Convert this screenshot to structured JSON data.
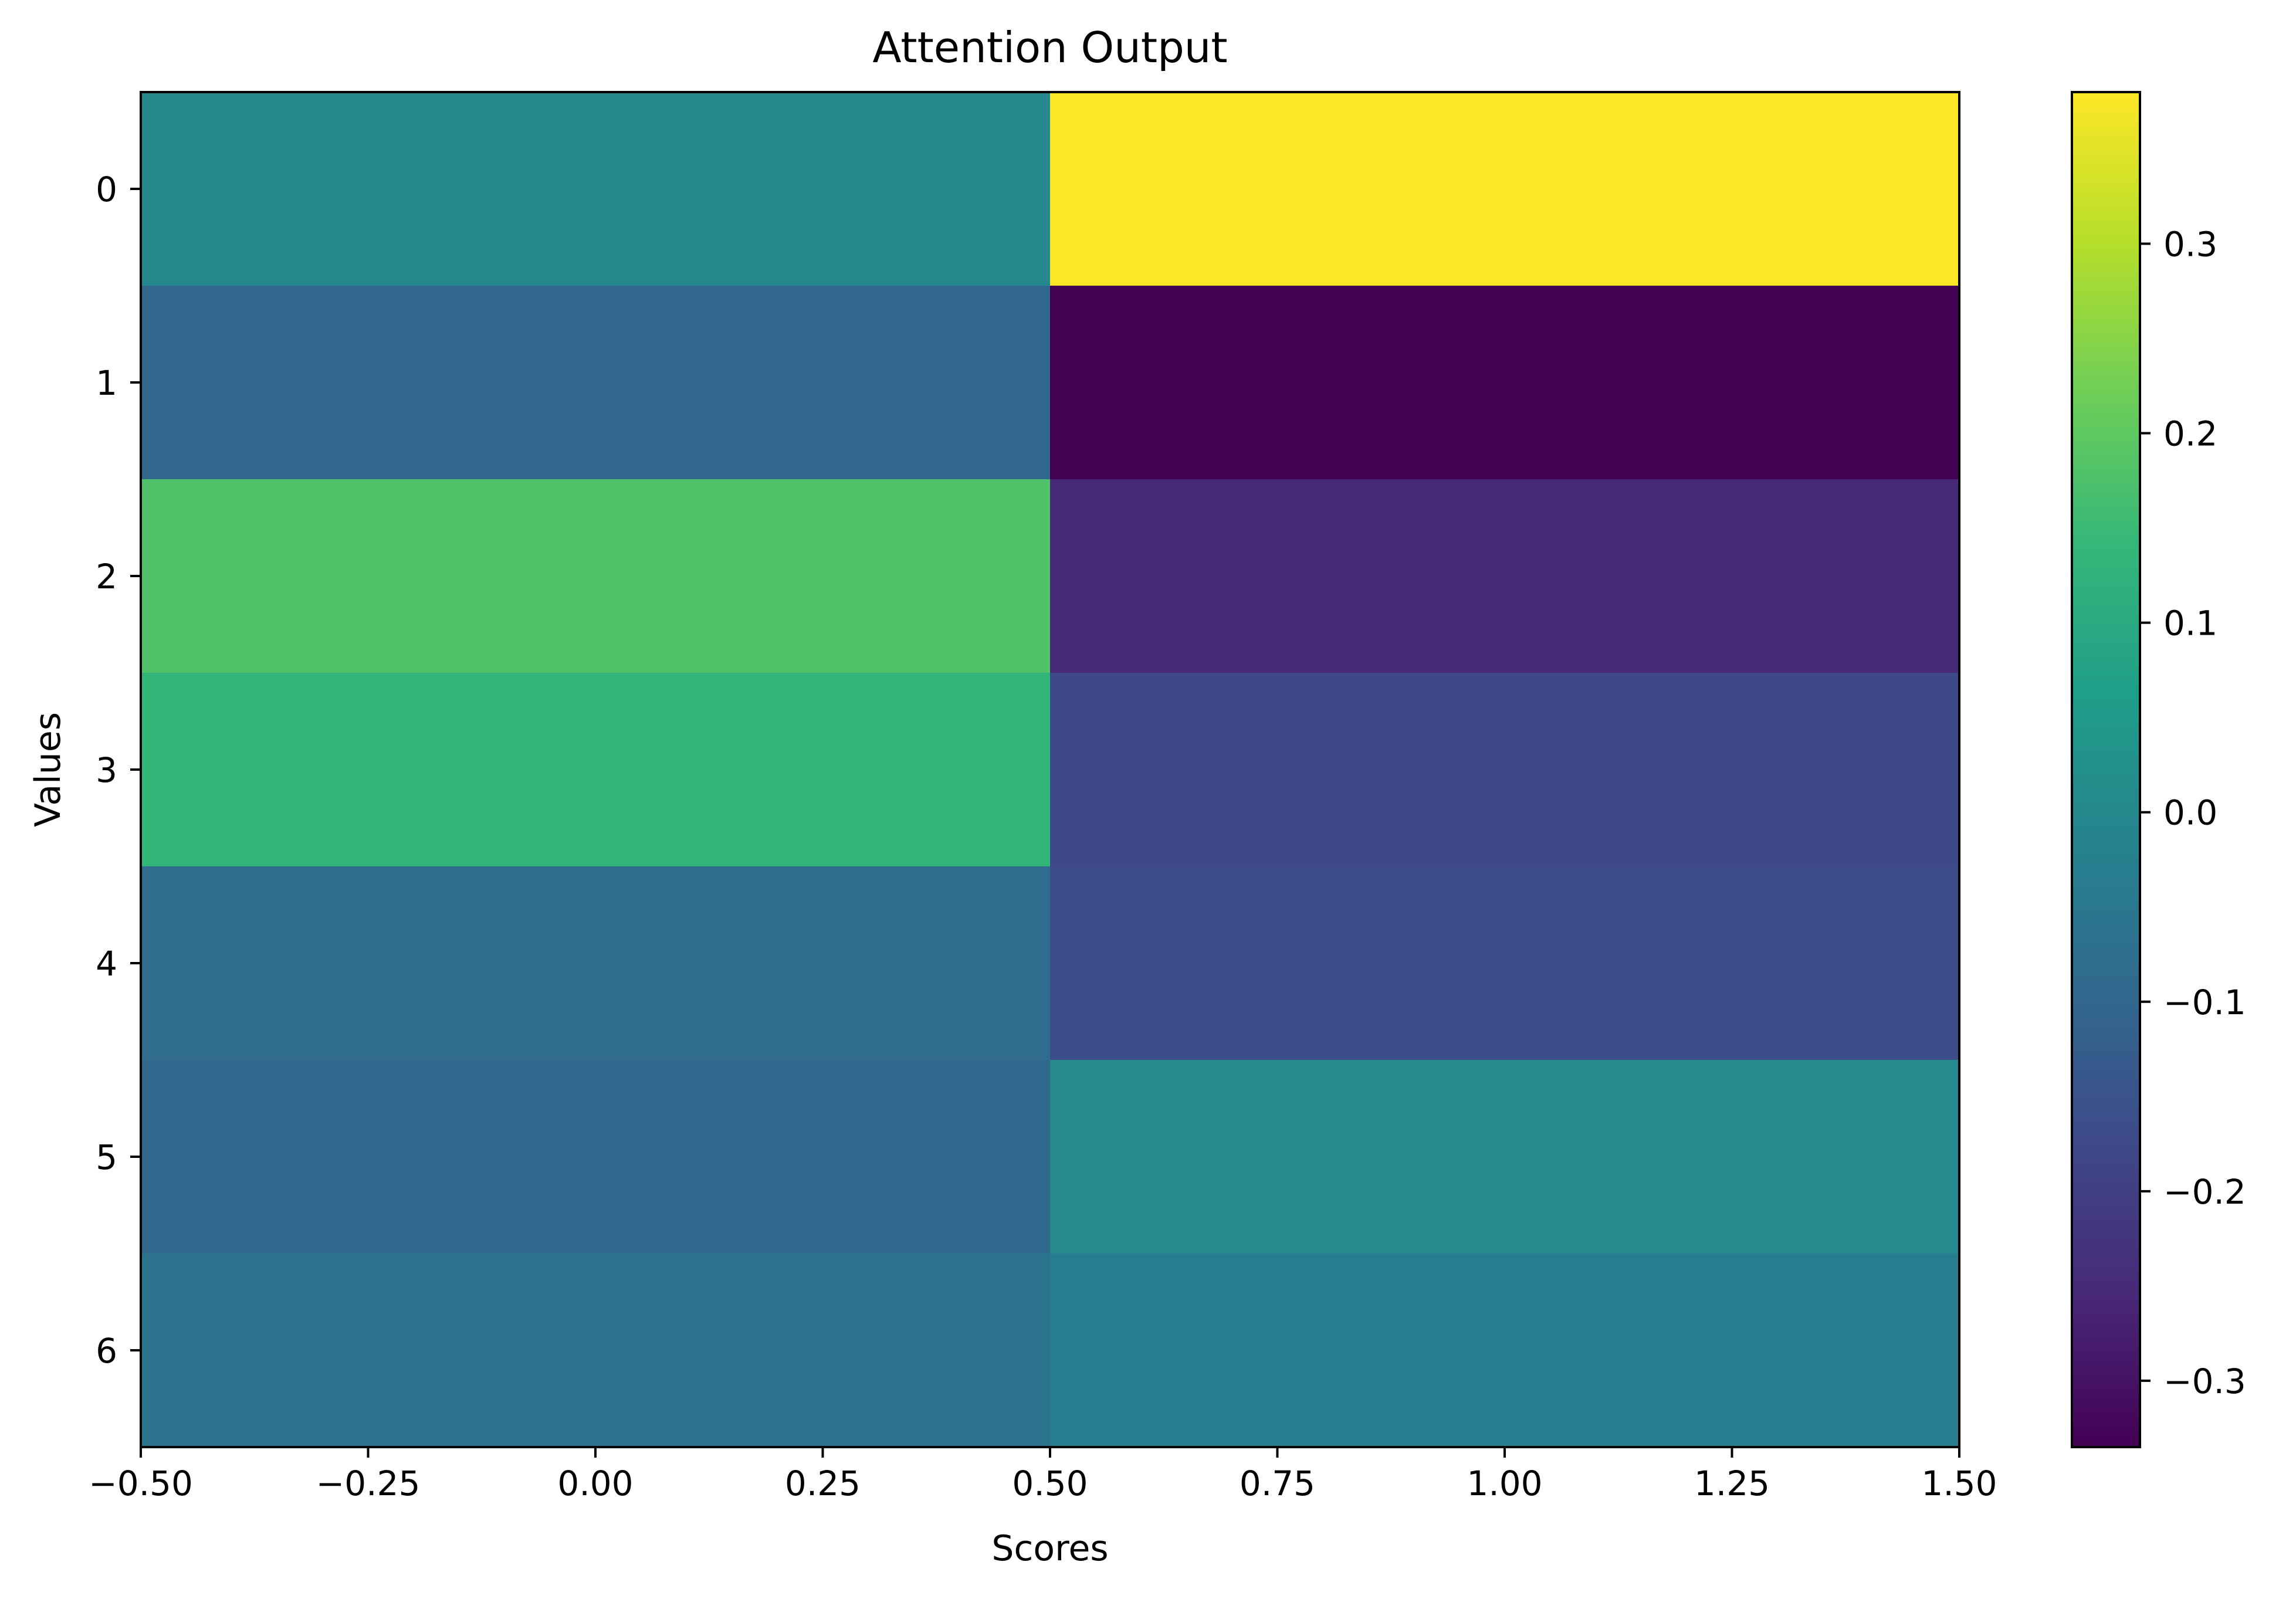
{
  "chart_data": {
    "type": "heatmap",
    "title": "Attention Output",
    "xlabel": "Scores",
    "ylabel": "Values",
    "xlim": [
      -0.5,
      1.5
    ],
    "ylim": [
      6.5,
      -0.5
    ],
    "x_ticks": [
      "−0.50",
      "−0.25",
      "0.00",
      "0.25",
      "0.50",
      "0.75",
      "1.00",
      "1.25",
      "1.50"
    ],
    "x_tick_values": [
      -0.5,
      -0.25,
      0.0,
      0.25,
      0.5,
      0.75,
      1.0,
      1.25,
      1.5
    ],
    "y_ticks": [
      "0",
      "1",
      "2",
      "3",
      "4",
      "5",
      "6"
    ],
    "y_tick_values": [
      0,
      1,
      2,
      3,
      4,
      5,
      6
    ],
    "columns": [
      0,
      1
    ],
    "rows": [
      0,
      1,
      2,
      3,
      4,
      5,
      6
    ],
    "values": [
      [
        0.0,
        0.38
      ],
      [
        -0.1,
        -0.335
      ],
      [
        0.18,
        -0.255
      ],
      [
        0.135,
        -0.175
      ],
      [
        -0.085,
        -0.165
      ],
      [
        -0.095,
        0.005
      ],
      [
        -0.06,
        -0.03
      ]
    ],
    "colormap": "viridis",
    "colorbar": {
      "vmin": -0.335,
      "vmax": 0.38,
      "ticks": [
        "−0.3",
        "−0.2",
        "−0.1",
        "0.0",
        "0.1",
        "0.2",
        "0.3"
      ],
      "tick_values": [
        -0.3,
        -0.2,
        -0.1,
        0.0,
        0.1,
        0.2,
        0.3
      ]
    },
    "grid": false,
    "legend": "none"
  }
}
